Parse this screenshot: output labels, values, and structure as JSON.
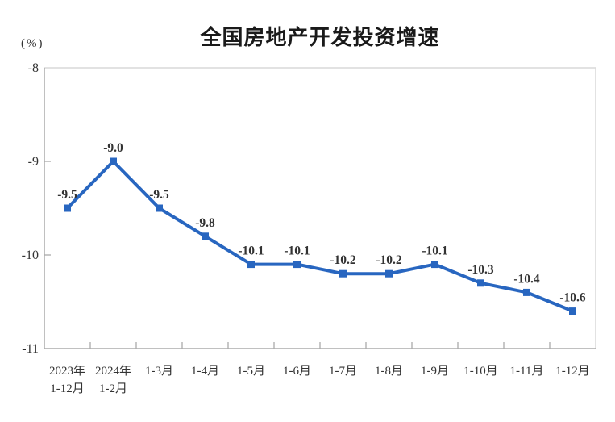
{
  "chart_data": {
    "type": "line",
    "title": "全国房地产开发投资增速",
    "unit_label": "(%)",
    "categories": [
      "2023年\n1-12月",
      "2024年\n1-2月",
      "1-3月",
      "1-4月",
      "1-5月",
      "1-6月",
      "1-7月",
      "1-8月",
      "1-9月",
      "1-10月",
      "1-11月",
      "1-12月"
    ],
    "series": [
      {
        "name": "全国房地产开发投资增速",
        "values": [
          -9.5,
          -9.0,
          -9.5,
          -9.8,
          -10.1,
          -10.1,
          -10.2,
          -10.2,
          -10.1,
          -10.3,
          -10.4,
          -10.6
        ]
      }
    ],
    "data_labels": [
      "-9.5",
      "-9.0",
      "-9.5",
      "-9.8",
      "-10.1",
      "-10.1",
      "-10.2",
      "-10.2",
      "-10.1",
      "-10.3",
      "-10.4",
      "-10.6"
    ],
    "ylim": [
      -11,
      -8
    ],
    "yticks": [
      -8,
      -9,
      -10,
      -11
    ],
    "ytick_labels": [
      "-8",
      "-9",
      "-10",
      "-11"
    ],
    "grid": false,
    "legend": "none",
    "colors": {
      "line": "#2866C0",
      "marker": "#2866C0",
      "text": "#333333",
      "axis": "#ABABAB",
      "border": "#D9D9D9",
      "title": "#1A1A1A"
    }
  }
}
